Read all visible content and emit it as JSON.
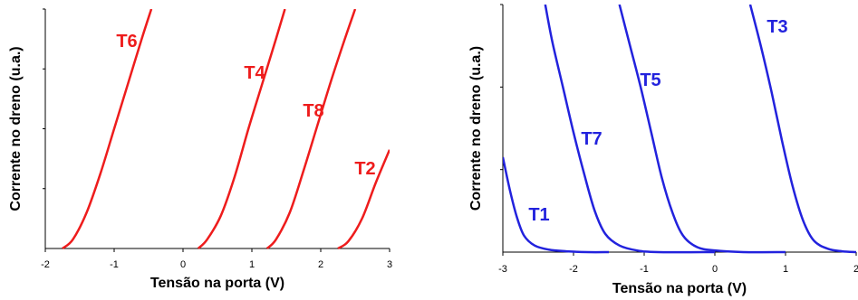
{
  "chart_data": [
    {
      "type": "line",
      "xlabel": "Tensão na porta (V)",
      "ylabel": "Corrente no dreno (u.a.)",
      "xlim": [
        -2,
        3
      ],
      "ylim": [
        0,
        4
      ],
      "xticks": [
        -2,
        -1,
        0,
        1,
        2,
        3
      ],
      "xtick_labels": [
        "-2",
        "-1",
        "0",
        "1",
        "2",
        "3"
      ],
      "yticks": [
        1,
        2,
        3,
        4
      ],
      "ytick_labels_shown": false,
      "grid": false,
      "color": "#ee1c1c",
      "series": [
        {
          "name": "T6",
          "x": [
            -1.75,
            -1.6,
            -1.4,
            -1.2,
            -1.0,
            -0.8,
            -0.6,
            -0.46
          ],
          "y": [
            0.0,
            0.15,
            0.6,
            1.25,
            2.0,
            2.75,
            3.5,
            4.0
          ]
        },
        {
          "name": "T4",
          "x": [
            0.22,
            0.35,
            0.55,
            0.75,
            0.95,
            1.15,
            1.35,
            1.48
          ],
          "y": [
            0.0,
            0.15,
            0.55,
            1.2,
            2.0,
            2.75,
            3.5,
            4.0
          ]
        },
        {
          "name": "T8",
          "x": [
            1.22,
            1.35,
            1.55,
            1.75,
            1.95,
            2.15,
            2.35,
            2.5
          ],
          "y": [
            0.0,
            0.15,
            0.6,
            1.3,
            2.05,
            2.8,
            3.5,
            4.0
          ]
        },
        {
          "name": "T2",
          "x": [
            2.25,
            2.4,
            2.6,
            2.8,
            3.0
          ],
          "y": [
            0.0,
            0.12,
            0.5,
            1.1,
            1.65
          ]
        }
      ]
    },
    {
      "type": "line",
      "xlabel": "Tensão na porta (V)",
      "ylabel": "Corrente no dreno (u.a.)",
      "xlim": [
        -3,
        2
      ],
      "ylim": [
        0,
        3
      ],
      "xticks": [
        -3,
        -2,
        -1,
        0,
        1,
        2
      ],
      "xtick_labels": [
        "-3",
        "-2",
        "-1",
        "0",
        "1",
        "2"
      ],
      "yticks": [
        1,
        2,
        3
      ],
      "ytick_labels_shown": false,
      "grid": false,
      "color": "#2222dd",
      "series": [
        {
          "name": "T1",
          "x": [
            -3.0,
            -2.9,
            -2.8,
            -2.7,
            -2.55,
            -2.35,
            -2.1,
            -1.8,
            -1.5
          ],
          "y": [
            1.15,
            0.75,
            0.42,
            0.2,
            0.08,
            0.03,
            0.01,
            0.0,
            0.0
          ]
        },
        {
          "name": "T7",
          "x": [
            -2.4,
            -2.3,
            -2.15,
            -2.0,
            -1.85,
            -1.7,
            -1.55,
            -1.35,
            -1.1,
            -0.8,
            0.0
          ],
          "y": [
            3.0,
            2.55,
            2.0,
            1.45,
            0.95,
            0.5,
            0.22,
            0.08,
            0.02,
            0.0,
            0.0
          ]
        },
        {
          "name": "T5",
          "x": [
            -1.35,
            -1.2,
            -1.05,
            -0.9,
            -0.75,
            -0.6,
            -0.45,
            -0.25,
            0.0,
            0.4,
            1.0
          ],
          "y": [
            3.0,
            2.5,
            2.0,
            1.45,
            0.9,
            0.48,
            0.2,
            0.06,
            0.02,
            0.0,
            0.0
          ]
        },
        {
          "name": "T3",
          "x": [
            0.5,
            0.65,
            0.8,
            0.95,
            1.1,
            1.25,
            1.4,
            1.6,
            1.8,
            2.0
          ],
          "y": [
            3.0,
            2.5,
            1.95,
            1.35,
            0.8,
            0.38,
            0.14,
            0.04,
            0.01,
            0.0
          ]
        }
      ]
    }
  ]
}
